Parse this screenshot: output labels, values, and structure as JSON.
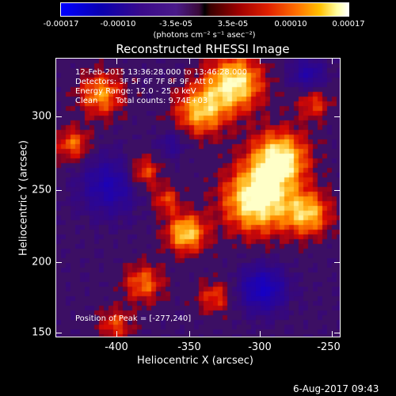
{
  "colorbar": {
    "ticks": [
      "-0.00017",
      "-0.00010",
      "-3.5e-05",
      "3.5e-05",
      "0.00010",
      "0.00017"
    ],
    "units": "(photons cm⁻² s⁻¹ asec⁻²)"
  },
  "title": "Reconstructed RHESSI Image",
  "annotations": {
    "time": "12-Feb-2015 13:36:28.000 to 13:46:28.000",
    "detectors": "Detectors: 3F 5F 6F 7F 8F 9F, Att 0",
    "energy": "Energy Range: 12.0 - 25.0 keV",
    "clean_label": "Clean",
    "total_counts": "Total counts: 9.74E+03",
    "peak": "Position of Peak = [-277,240]"
  },
  "axes": {
    "x_title": "Heliocentric X (arcsec)",
    "y_title": "Heliocentric Y (arcsec)",
    "x_ticks": [
      "-400",
      "-350",
      "-300",
      "-250"
    ],
    "y_ticks": [
      "300",
      "250",
      "200",
      "150"
    ]
  },
  "footer": {
    "date": "6-Aug-2017 09:43"
  },
  "colors": {
    "background": "#000000",
    "foreground": "#ffffff"
  },
  "map": {
    "colormap": "blue-black-red-yellow-white"
  }
}
